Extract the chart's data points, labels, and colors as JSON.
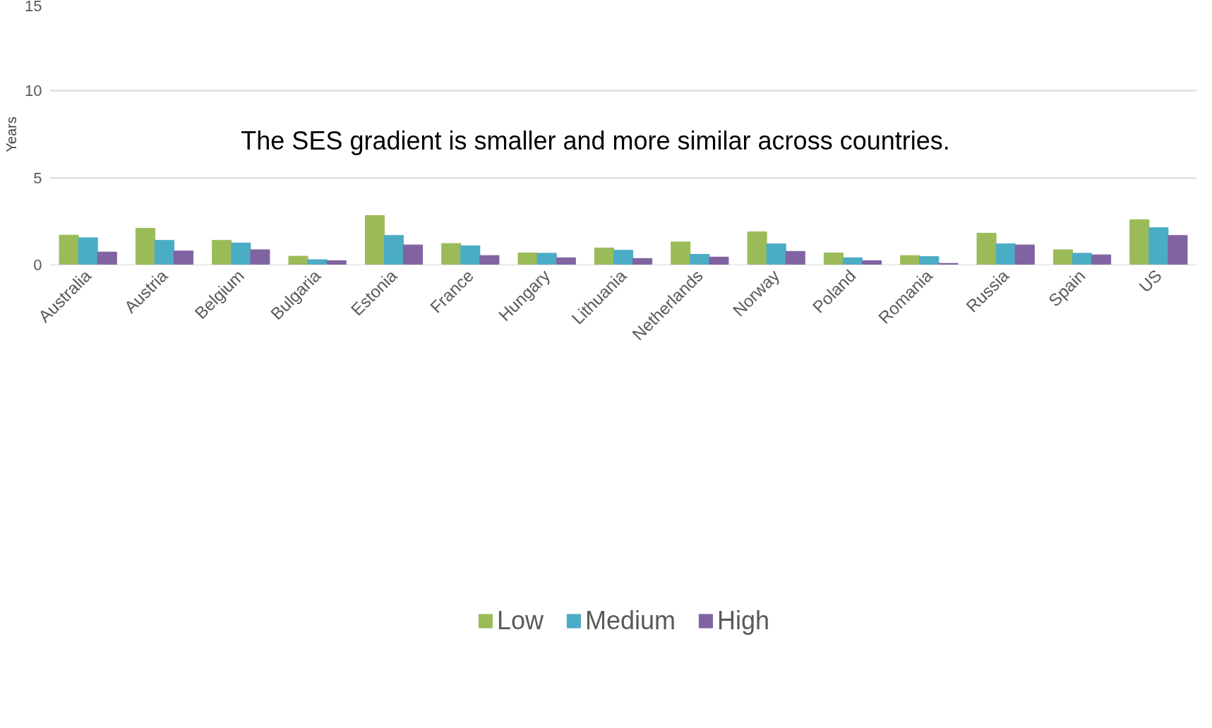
{
  "chart_data": {
    "type": "bar",
    "ylabel": "Years",
    "annotations": [
      "The SES gradient is smaller and more similar across countries."
    ],
    "categories": [
      "Australia",
      "Austria",
      "Belgium",
      "Bulgaria",
      "Estonia",
      "France",
      "Hungary",
      "Lithuania",
      "Netherlands",
      "Norway",
      "Poland",
      "Romania",
      "Russia",
      "Spain",
      "US"
    ],
    "series": [
      {
        "name": "Low",
        "color": "#9bbb59",
        "values": [
          1.71,
          2.1,
          1.41,
          0.5,
          2.84,
          1.23,
          0.69,
          0.97,
          1.32,
          1.9,
          0.69,
          0.54,
          1.82,
          0.87,
          2.6
        ]
      },
      {
        "name": "Medium",
        "color": "#4bacc6",
        "values": [
          1.56,
          1.41,
          1.26,
          0.3,
          1.69,
          1.1,
          0.67,
          0.84,
          0.61,
          1.21,
          0.41,
          0.48,
          1.21,
          0.67,
          2.14
        ]
      },
      {
        "name": "High",
        "color": "#8064a2",
        "values": [
          0.74,
          0.8,
          0.87,
          0.24,
          1.15,
          0.54,
          0.41,
          0.37,
          0.45,
          0.78,
          0.24,
          0.09,
          1.15,
          0.58,
          1.69
        ]
      }
    ],
    "ylim": [
      0,
      15
    ],
    "yticks": [
      0,
      5,
      10,
      15
    ],
    "grid": "y",
    "legend": "bottom"
  }
}
